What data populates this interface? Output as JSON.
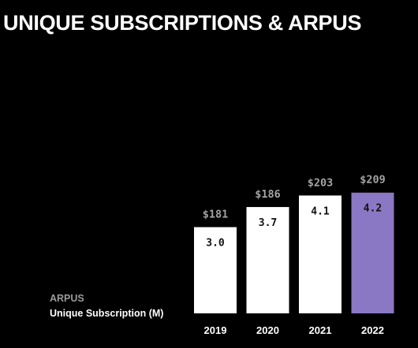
{
  "title": "UNIQUE SUBSCRIPTIONS & ARPUS",
  "legend": {
    "arpus_label": "ARPUS",
    "subscriptions_label": "Unique Subscription (M)"
  },
  "colors": {
    "background": "#000000",
    "bar_default": "#ffffff",
    "bar_highlight": "#8b78c4",
    "arpu_text": "#a3a3a3",
    "bar_value_text": "#111111",
    "year_text": "#ffffff"
  },
  "chart_data": {
    "type": "bar",
    "title": "UNIQUE SUBSCRIPTIONS & ARPUS",
    "categories": [
      "2019",
      "2020",
      "2021",
      "2022"
    ],
    "series": [
      {
        "name": "Unique Subscription (M)",
        "values": [
          3.0,
          3.7,
          4.1,
          4.2
        ],
        "value_labels": [
          "3.0",
          "3.7",
          "4.1",
          "4.2"
        ]
      },
      {
        "name": "ARPUS",
        "values": [
          181,
          186,
          203,
          209
        ],
        "value_labels": [
          "$181",
          "$186",
          "$203",
          "$209"
        ]
      }
    ],
    "highlighted_category": "2022",
    "xlabel": "",
    "ylabel": "",
    "grid": false,
    "legend_position": "bottom-left"
  }
}
